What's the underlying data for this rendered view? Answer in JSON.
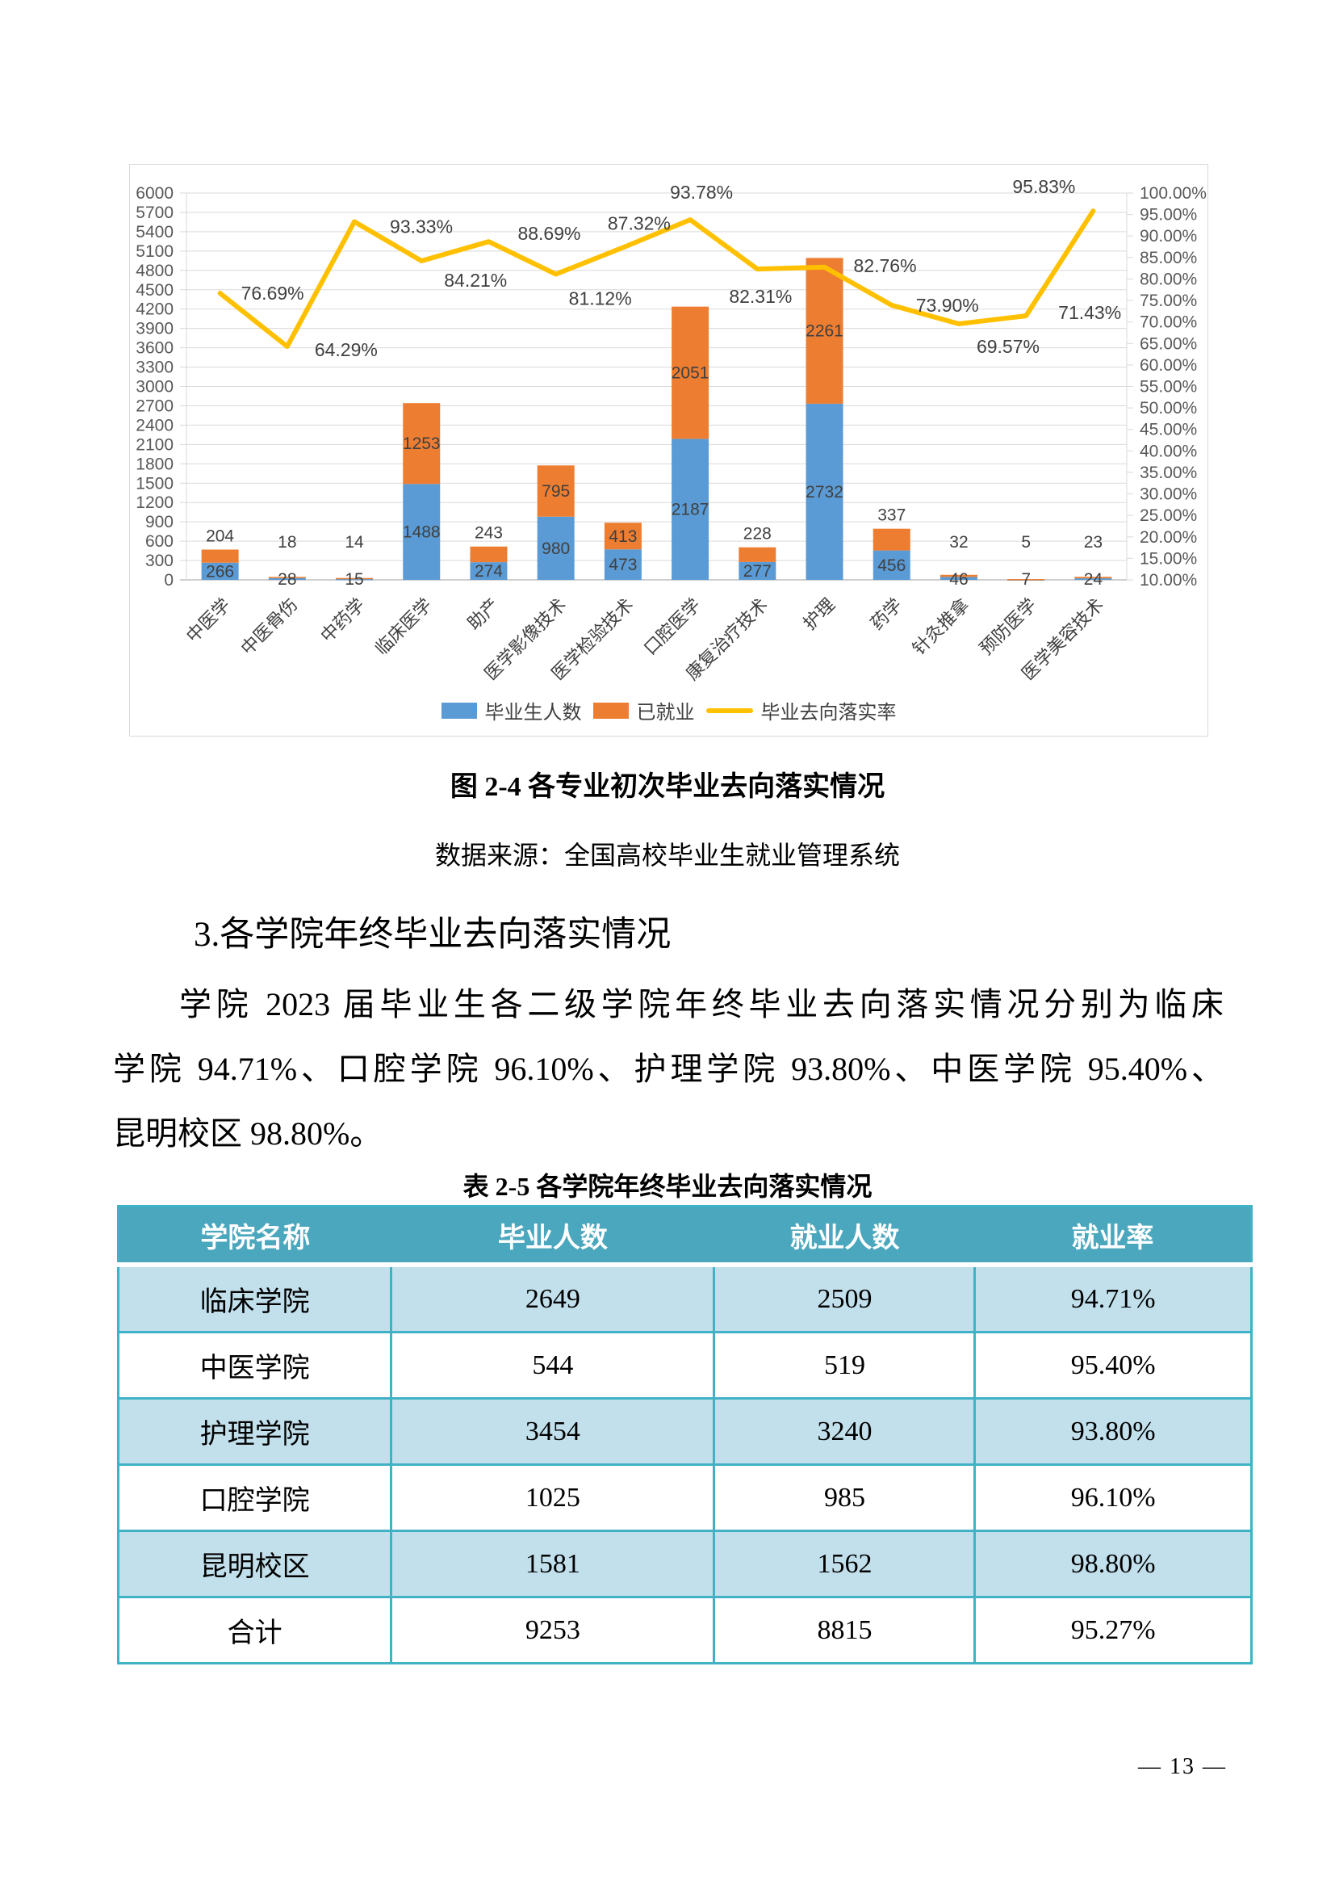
{
  "figure": {
    "caption": "图 2-4  各专业初次毕业去向落实情况",
    "source": "数据来源：全国高校毕业生就业管理系统"
  },
  "section": {
    "heading": "3.各学院年终毕业去向落实情况",
    "paragraph_lines": [
      "学院 2023 届毕业生各二级学院年终毕业去向落实情况分别为临床",
      "学院 94.71%、口腔学院 96.10%、护理学院 93.80%、中医学院 95.40%、",
      "昆明校区 98.80%。"
    ]
  },
  "chart_data": {
    "type": "bar",
    "subtype": "stacked-bars-with-line",
    "title": "",
    "categories": [
      "中医学",
      "中医骨伤",
      "中药学",
      "临床医学",
      "助产",
      "医学影像技术",
      "医学检验技术",
      "口腔医学",
      "康复治疗技术",
      "护理",
      "药学",
      "针灸推拿",
      "预防医学",
      "医学美容技术"
    ],
    "series": [
      {
        "name": "毕业生人数",
        "type": "bar",
        "color": "#5B9BD5",
        "values": [
          266,
          28,
          15,
          1488,
          274,
          980,
          473,
          2187,
          277,
          2732,
          456,
          46,
          7,
          24
        ]
      },
      {
        "name": "已就业",
        "type": "bar",
        "color": "#ED7D31",
        "values": [
          204,
          18,
          14,
          1253,
          243,
          795,
          413,
          2051,
          228,
          2261,
          337,
          32,
          5,
          23
        ]
      },
      {
        "name": "毕业去向落实率",
        "type": "line",
        "color": "#FFC000",
        "values": [
          76.69,
          64.29,
          93.33,
          84.21,
          88.69,
          81.12,
          87.32,
          93.78,
          82.31,
          82.76,
          73.9,
          69.57,
          71.43,
          95.83
        ],
        "labels": [
          "76.69%",
          "64.29%",
          "93.33%",
          "84.21%",
          "88.69%",
          "81.12%",
          "87.32%",
          "93.78%",
          "82.31%",
          "82.76%",
          "73.90%",
          "69.57%",
          "71.43%",
          "95.83%"
        ]
      }
    ],
    "left_axis": {
      "min": 0,
      "max": 6000,
      "step": 300
    },
    "right_axis": {
      "min": 10,
      "max": 100,
      "step": 5,
      "suffix": "%"
    },
    "stacked": true,
    "grid": "horizontal",
    "legend_position": "bottom",
    "colors": {
      "gridline": "#D9D9D9",
      "axis_line": "#BFBFBF",
      "axis_text": "#595959",
      "label_text": "#404040",
      "border": "#D9D9D9"
    }
  },
  "table": {
    "title": "表 2-5  各学院年终毕业去向落实情况",
    "columns": [
      "学院名称",
      "毕业人数",
      "就业人数",
      "就业率"
    ],
    "rows": [
      [
        "临床学院",
        "2649",
        "2509",
        "94.71%"
      ],
      [
        "中医学院",
        "544",
        "519",
        "95.40%"
      ],
      [
        "护理学院",
        "3454",
        "3240",
        "93.80%"
      ],
      [
        "口腔学院",
        "1025",
        "985",
        "96.10%"
      ],
      [
        "昆明校区",
        "1581",
        "1562",
        "98.80%"
      ],
      [
        "合计",
        "9253",
        "8815",
        "95.27%"
      ]
    ],
    "colors": {
      "header_bg": "#4BA7BD",
      "header_text": "#FFFFFF",
      "row_alt_bg": "#C2E0EC",
      "row_bg": "#FFFFFF",
      "border": "#41B1C6"
    }
  },
  "page": {
    "number_label": "— 13 —"
  }
}
